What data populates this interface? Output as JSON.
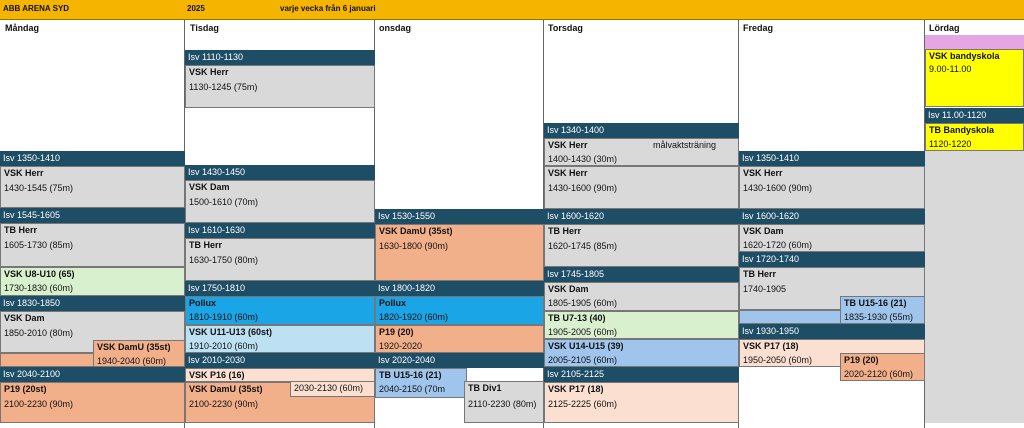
{
  "header": {
    "arena": "ABB ARENA SYD",
    "year": "2025",
    "note": "varje vecka från 6 januari"
  },
  "days": {
    "mon": "Måndag",
    "tue": "Tisdag",
    "wed": "onsdag",
    "thu": "Torsdag",
    "fri": "Fredag",
    "sat": "Lördag"
  },
  "mon": {
    "isv1": "Isv 1350-1410",
    "e1t": "VSK Herr",
    "e1s": "1430-1545 (75m)",
    "isv2": "Isv 1545-1605",
    "e2t": "TB Herr",
    "e2s": "1605-1730 (85m)",
    "e3t": "VSK U8-U10 (65)",
    "e3s": "1730-1830 (60m)",
    "isv3": "Isv 1830-1850",
    "e4t": "VSK Dam",
    "e4s": "1850-2010 (80m)",
    "e5t": "VSK DamU (35st)",
    "e5s": "1940-2040 (60m)",
    "isv4": "Isv 2040-2100",
    "e6t": "P19 (20st)",
    "e6s": "2100-2230 (90m)"
  },
  "tue": {
    "isv1": "Isv 1110-1130",
    "e1t": "VSK Herr",
    "e1s": "1130-1245 (75m)",
    "isv2": "Isv 1430-1450",
    "e2t": "VSK Dam",
    "e2s": "1500-1610 (70m)",
    "isv3": "Isv 1610-1630",
    "e3t": "TB Herr",
    "e3s": "1630-1750 (80m)",
    "isv4": "Isv 1750-1810",
    "e4t": "Pollux",
    "e4s": "1810-1910 (60m)",
    "e5t": "VSK U11-U13 (60st)",
    "e5s": "1910-2010 (60m)",
    "isv5": "Isv 2010-2030",
    "e6t": "VSK P16 (16)",
    "e7t": "VSK DamU (35st)",
    "e7s": "2100-2230 (90m)",
    "e8s": "2030-2130 (60m)"
  },
  "wed": {
    "isv1": "Isv 1530-1550",
    "e1t": "VSK DamU (35st)",
    "e1s": "1630-1800 (90m)",
    "isv2": "Isv 1800-1820",
    "e2t": "Pollux",
    "e2s": "1820-1920 (60m)",
    "e3t": "P19 (20)",
    "e3s": "1920-2020",
    "isv3": "Isv 2020-2040",
    "e4t": "TB U15-16 (21)",
    "e4s": "2040-2150 (70m",
    "e5t": "TB Div1",
    "e5s": "2110-2230 (80m)"
  },
  "thu": {
    "isv1": "Isv 1340-1400",
    "e1t": "VSK Herr",
    "e1n": "målvaktsträning",
    "e1s": "1400-1430 (30m)",
    "e2t": "VSK Herr",
    "e2s": "1430-1600 (90m)",
    "isv2": "Isv 1600-1620",
    "e3t": "TB Herr",
    "e3s": "1620-1745 (85m)",
    "isv3": "Isv 1745-1805",
    "e4t": "VSK Dam",
    "e4s": "1805-1905 (60m)",
    "e5t": "TB U7-13 (40)",
    "e5s": "1905-2005 (60m)",
    "e6t": "VSK U14-U15 (39)",
    "e6s": "2005-2105 (60m)",
    "isv4": "Isv 2105-2125",
    "e7t": "VSK P17 (18)",
    "e7s": "2125-2225 (60m)"
  },
  "fri": {
    "isv1": "Isv 1350-1410",
    "e1t": "VSK Herr",
    "e1s": "1430-1600 (90m)",
    "isv2": "Isv 1600-1620",
    "e2t": "VSK Dam",
    "e2s": "1620-1720 (60m)",
    "isv3": "Isv 1720-1740",
    "e3t": "TB Herr",
    "e3s": "1740-1905",
    "e4t": "TB U15-16 (21)",
    "e4s": "1835-1930 (55m)",
    "isv4": "Isv 1930-1950",
    "e5t": "VSK P17 (18)",
    "e5s": "1950-2050 (60m)",
    "e6t": "P19 (20)",
    "e6s": "2020-2120 (60m)"
  },
  "sat": {
    "e1t": "VSK bandyskola",
    "e1s": "9.00-11.00",
    "isv1": "Isv 11.00-1120",
    "e2t": "TB Bandyskola",
    "e2s": "1120-1220"
  },
  "colors": {
    "header": "#f4b400",
    "isv": "#1e4d66",
    "grey": "#d9d9d9",
    "orange": "#f2b08a",
    "blue": "#1aa5e6",
    "yellow": "#ffff00"
  }
}
